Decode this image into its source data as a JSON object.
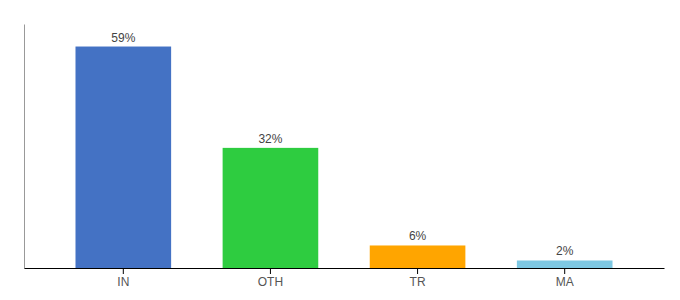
{
  "chart_data": {
    "type": "bar",
    "categories": [
      "IN",
      "OTH",
      "TR",
      "MA"
    ],
    "values": [
      59,
      32,
      6,
      2
    ],
    "value_labels": [
      "59%",
      "32%",
      "6%",
      "2%"
    ],
    "colors": [
      "#4472c4",
      "#2ecc40",
      "#ffa500",
      "#7ec8e3"
    ],
    "ylim": [
      0,
      65
    ],
    "data_labels": true,
    "tick_labels": "x",
    "grid": false
  }
}
